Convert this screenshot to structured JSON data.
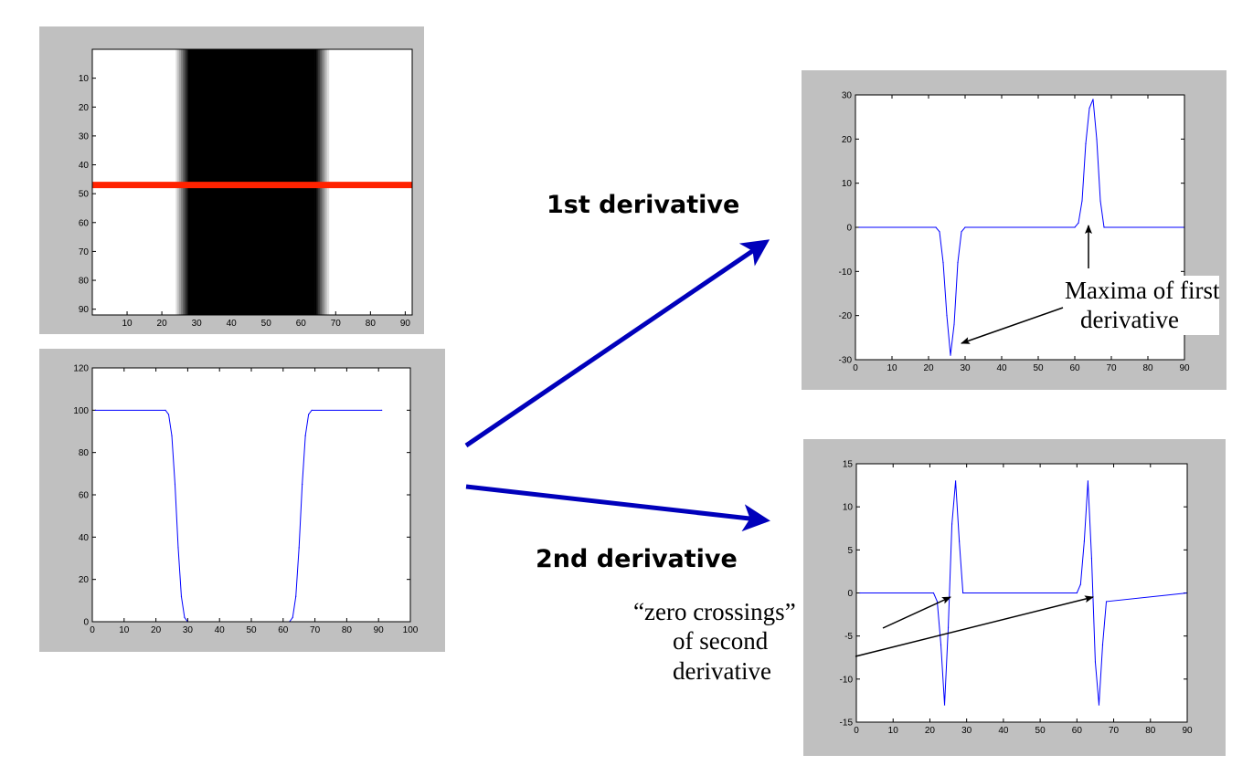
{
  "labels": {
    "first_derivative": "1st derivative",
    "second_derivative": "2nd derivative",
    "maxima_line1": "Maxima of first",
    "maxima_line2": "derivative",
    "zero_line1": "“zero crossings”",
    "zero_line2": "of second",
    "zero_line3": "derivative"
  },
  "colors": {
    "panel_bg": "#c0c0c0",
    "axes_bg": "#ffffff",
    "plot_line": "#0000ff",
    "scanline": "#ff2200",
    "big_arrow": "#0000bb",
    "annotation": "#000000"
  },
  "chart_data": [
    {
      "type": "heatmap",
      "name": "edge-image",
      "description_values": "91x91 intensity image: white background with black vertical band between x≈27 and x≈65, graded transitions",
      "xlim": [
        0,
        92
      ],
      "ylim": [
        0,
        92
      ],
      "xticks": [
        10,
        20,
        30,
        40,
        50,
        60,
        70,
        80,
        90
      ],
      "yticks": [
        10,
        20,
        30,
        40,
        50,
        60,
        70,
        80,
        90
      ],
      "dark_band": [
        27,
        65
      ],
      "ramp_left": [
        24,
        28
      ],
      "ramp_right": [
        64,
        68
      ],
      "scanline_row": 47
    },
    {
      "type": "line",
      "name": "intensity-profile",
      "xlim": [
        0,
        100
      ],
      "ylim": [
        0,
        120
      ],
      "xticks": [
        0,
        10,
        20,
        30,
        40,
        50,
        60,
        70,
        80,
        90,
        100
      ],
      "yticks": [
        0,
        20,
        40,
        60,
        80,
        100,
        120
      ],
      "x": [
        1,
        23,
        24,
        25,
        26,
        27,
        28,
        29,
        30,
        62,
        63,
        64,
        65,
        66,
        67,
        68,
        69,
        91
      ],
      "y": [
        100,
        100,
        98,
        88,
        65,
        35,
        12,
        2,
        0,
        0,
        2,
        12,
        35,
        65,
        88,
        98,
        100,
        100
      ]
    },
    {
      "type": "line",
      "name": "first-derivative",
      "xlim": [
        0,
        90
      ],
      "ylim": [
        -30,
        30
      ],
      "xticks": [
        0,
        10,
        20,
        30,
        40,
        50,
        60,
        70,
        80,
        90
      ],
      "yticks": [
        -30,
        -20,
        -10,
        0,
        10,
        20,
        30
      ],
      "x": [
        1,
        22,
        23,
        24,
        25,
        26,
        27,
        28,
        29,
        30,
        60,
        61,
        62,
        63,
        64,
        65,
        66,
        67,
        68,
        90
      ],
      "y": [
        0,
        0,
        -1,
        -8,
        -20,
        -29,
        -22,
        -8,
        -1,
        0,
        0,
        1,
        6,
        19,
        27,
        29,
        20,
        6,
        0,
        0
      ]
    },
    {
      "type": "line",
      "name": "second-derivative",
      "xlim": [
        0,
        90
      ],
      "ylim": [
        -15,
        15
      ],
      "xticks": [
        0,
        10,
        20,
        30,
        40,
        50,
        60,
        70,
        80,
        90
      ],
      "yticks": [
        -15,
        -10,
        -5,
        0,
        5,
        10,
        15
      ],
      "x": [
        1,
        21,
        22,
        23,
        24,
        25,
        26,
        27,
        28,
        29,
        60,
        61,
        62,
        63,
        64,
        65,
        66,
        67,
        68,
        90
      ],
      "y": [
        0,
        0,
        -1,
        -6,
        -13,
        -4,
        8,
        13,
        6,
        0,
        0,
        1,
        6,
        13,
        4,
        -8,
        -13,
        -6,
        -1,
        0
      ]
    }
  ]
}
